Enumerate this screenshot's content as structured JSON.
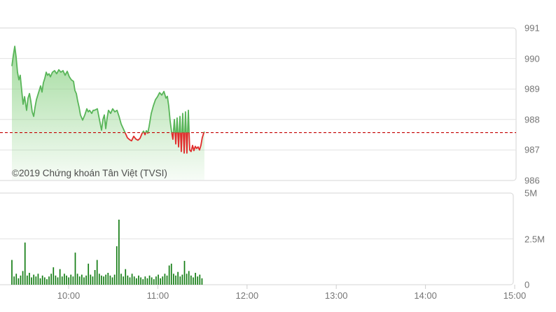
{
  "chart": {
    "copyright": "©2019 Chứng khoán Tân Việt (TVSI)"
  },
  "colors": {
    "line_up": "#58b558",
    "line_down": "#e12b2b",
    "area_fill": "#90d48a",
    "dip_fill": "#ffffff",
    "reference_line": "#c40000",
    "volume_bar": "#147d14",
    "grid_line": "#e2e2e2",
    "pane_border": "#d6d6d6",
    "tick_mark": "#cfcfcf",
    "axis_label": "#757575",
    "copyright_text": "#4d4d4d",
    "background": "#ffffff"
  },
  "chart_data": {
    "type": [
      "area",
      "bar"
    ],
    "title": "",
    "legend": "none",
    "grid": true,
    "time_axis": {
      "ticks": [
        "10:00",
        "11:00",
        "12:00",
        "13:00",
        "14:00",
        "15:00"
      ],
      "tick_hours": [
        10,
        11,
        12,
        13,
        14,
        15
      ],
      "session_start_hour": 9.36,
      "session_end_hour": 15.0
    },
    "price_axis": {
      "side": "right",
      "ticks": [
        991,
        990,
        989,
        988,
        987,
        986
      ],
      "min": 986,
      "max": 991
    },
    "volume_axis": {
      "side": "right",
      "ticks": [
        "5M",
        "2.5M",
        "0"
      ],
      "tick_values_millions": [
        5,
        2.5,
        0
      ],
      "min": 0,
      "max_millions": 5
    },
    "reference_price": 987.57,
    "price_series": {
      "name": "index-price",
      "points": [
        [
          9.364,
          989.75
        ],
        [
          9.38,
          990.1
        ],
        [
          9.396,
          990.4
        ],
        [
          9.411,
          990.05
        ],
        [
          9.427,
          989.55
        ],
        [
          9.443,
          989.3
        ],
        [
          9.458,
          989.45
        ],
        [
          9.474,
          988.95
        ],
        [
          9.49,
          988.5
        ],
        [
          9.506,
          988.75
        ],
        [
          9.521,
          988.45
        ],
        [
          9.529,
          988.3
        ],
        [
          9.545,
          988.7
        ],
        [
          9.561,
          988.85
        ],
        [
          9.576,
          988.6
        ],
        [
          9.592,
          988.25
        ],
        [
          9.608,
          988.1
        ],
        [
          9.623,
          988.4
        ],
        [
          9.639,
          988.65
        ],
        [
          9.655,
          988.8
        ],
        [
          9.67,
          988.95
        ],
        [
          9.686,
          989.1
        ],
        [
          9.702,
          988.9
        ],
        [
          9.717,
          989.2
        ],
        [
          9.733,
          989.35
        ],
        [
          9.749,
          989.55
        ],
        [
          9.764,
          989.45
        ],
        [
          9.78,
          989.5
        ],
        [
          9.796,
          989.4
        ],
        [
          9.819,
          989.55
        ],
        [
          9.843,
          989.6
        ],
        [
          9.866,
          989.5
        ],
        [
          9.89,
          989.63
        ],
        [
          9.913,
          989.55
        ],
        [
          9.937,
          989.6
        ],
        [
          9.961,
          989.45
        ],
        [
          9.984,
          989.58
        ],
        [
          10.008,
          989.4
        ],
        [
          10.031,
          989.3
        ],
        [
          10.055,
          989.25
        ],
        [
          10.071,
          988.95
        ],
        [
          10.086,
          988.85
        ],
        [
          10.102,
          988.6
        ],
        [
          10.118,
          988.4
        ],
        [
          10.133,
          988.15
        ],
        [
          10.157,
          987.98
        ],
        [
          10.181,
          988.15
        ],
        [
          10.204,
          988.35
        ],
        [
          10.22,
          988.25
        ],
        [
          10.235,
          988.3
        ],
        [
          10.259,
          988.2
        ],
        [
          10.275,
          988.3
        ],
        [
          10.29,
          988.3
        ],
        [
          10.322,
          988.35
        ],
        [
          10.345,
          988.0
        ],
        [
          10.369,
          987.65
        ],
        [
          10.385,
          988.0
        ],
        [
          10.4,
          988.15
        ],
        [
          10.416,
          987.7
        ],
        [
          10.432,
          988.05
        ],
        [
          10.447,
          988.3
        ],
        [
          10.471,
          988.2
        ],
        [
          10.494,
          988.35
        ],
        [
          10.518,
          988.25
        ],
        [
          10.542,
          988.3
        ],
        [
          10.565,
          988.1
        ],
        [
          10.589,
          987.85
        ],
        [
          10.612,
          987.7
        ],
        [
          10.636,
          987.55
        ],
        [
          10.659,
          987.4
        ],
        [
          10.683,
          987.34
        ],
        [
          10.706,
          987.3
        ],
        [
          10.73,
          987.45
        ],
        [
          10.753,
          987.36
        ],
        [
          10.777,
          987.32
        ],
        [
          10.8,
          987.38
        ],
        [
          10.824,
          987.55
        ],
        [
          10.84,
          987.62
        ],
        [
          10.856,
          987.5
        ],
        [
          10.871,
          987.63
        ],
        [
          10.887,
          987.55
        ],
        [
          10.903,
          987.78
        ],
        [
          10.926,
          988.2
        ],
        [
          10.95,
          988.45
        ],
        [
          10.973,
          988.65
        ],
        [
          10.997,
          988.75
        ],
        [
          11.02,
          988.88
        ],
        [
          11.044,
          988.8
        ],
        [
          11.068,
          988.92
        ],
        [
          11.091,
          988.7
        ],
        [
          11.107,
          988.76
        ],
        [
          11.122,
          988.45
        ],
        [
          11.138,
          987.95
        ],
        [
          11.154,
          987.6
        ],
        [
          11.169,
          987.35
        ],
        [
          11.185,
          988.0
        ],
        [
          11.201,
          987.2
        ],
        [
          11.216,
          988.05
        ],
        [
          11.232,
          987.1
        ],
        [
          11.248,
          988.1
        ],
        [
          11.263,
          986.95
        ],
        [
          11.279,
          988.2
        ],
        [
          11.295,
          986.9
        ],
        [
          11.31,
          988.25
        ],
        [
          11.326,
          986.9
        ],
        [
          11.342,
          988.3
        ],
        [
          11.357,
          987.0
        ],
        [
          11.373,
          986.95
        ],
        [
          11.389,
          987.15
        ],
        [
          11.404,
          986.98
        ],
        [
          11.42,
          987.12
        ],
        [
          11.436,
          987.05
        ],
        [
          11.451,
          987.1
        ],
        [
          11.467,
          987.0
        ],
        [
          11.483,
          987.15
        ],
        [
          11.498,
          987.4
        ],
        [
          11.514,
          987.55
        ],
        [
          11.522,
          987.6
        ]
      ]
    },
    "volume_series": {
      "name": "volume",
      "unit": "millions",
      "start_hour": 9.364,
      "interval_hours": 0.0245,
      "values_millions": [
        1.35,
        0.45,
        0.6,
        0.35,
        0.5,
        0.75,
        2.3,
        0.5,
        0.65,
        0.4,
        0.55,
        0.45,
        0.6,
        0.35,
        0.5,
        0.4,
        0.3,
        0.45,
        0.6,
        0.95,
        0.5,
        0.4,
        0.85,
        0.45,
        0.6,
        0.5,
        0.4,
        0.55,
        0.45,
        1.75,
        0.6,
        0.45,
        0.55,
        0.4,
        0.5,
        1.15,
        0.55,
        0.45,
        0.8,
        1.35,
        0.6,
        0.5,
        0.45,
        0.55,
        0.65,
        0.5,
        0.4,
        0.55,
        2.1,
        3.55,
        0.6,
        0.45,
        0.85,
        0.5,
        0.4,
        0.6,
        0.45,
        0.35,
        0.5,
        0.4,
        0.3,
        0.45,
        0.35,
        0.5,
        0.4,
        0.3,
        0.45,
        0.55,
        0.35,
        0.45,
        0.6,
        0.5,
        1.05,
        1.15,
        0.6,
        0.5,
        0.7,
        0.45,
        0.55,
        1.3,
        0.6,
        0.75,
        0.5,
        0.4,
        0.65,
        0.45,
        0.55,
        0.35
      ]
    }
  }
}
